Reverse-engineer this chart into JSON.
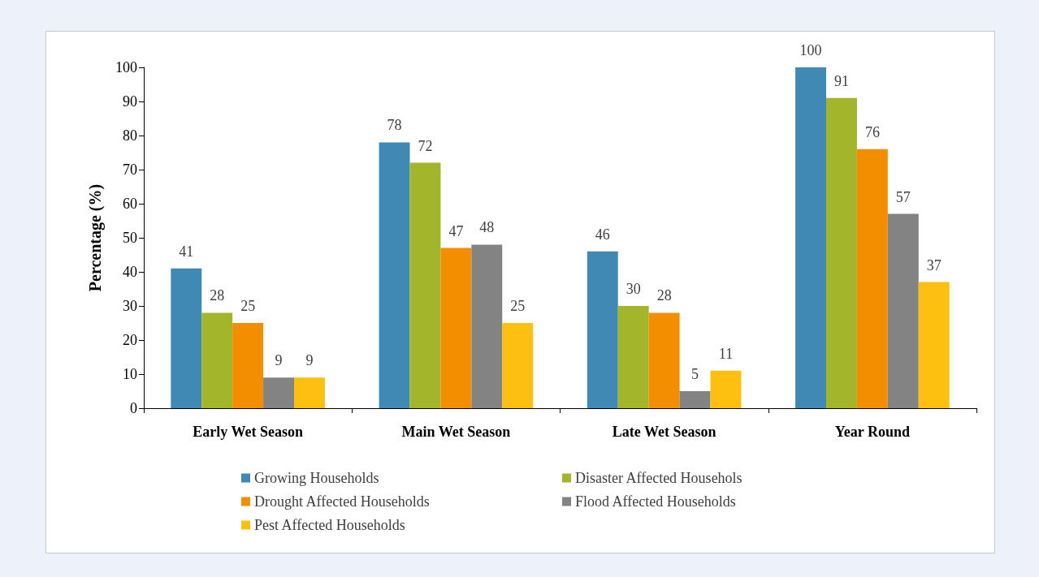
{
  "chart_data": {
    "type": "bar",
    "ylabel": "Percentage (%)",
    "categories": [
      "Early Wet Season",
      "Main Wet Season",
      "Late Wet Season",
      "Year Round"
    ],
    "series": [
      {
        "name": "Growing Households",
        "color": "#3f89b4",
        "values": [
          41,
          78,
          46,
          100
        ]
      },
      {
        "name": "Disaster Affected Househols",
        "color": "#a3b52b",
        "values": [
          28,
          72,
          30,
          91
        ]
      },
      {
        "name": "Drought Affected Households",
        "color": "#f28e00",
        "values": [
          25,
          47,
          28,
          76
        ]
      },
      {
        "name": "Flood Affected Households",
        "color": "#838383",
        "values": [
          9,
          48,
          5,
          57
        ]
      },
      {
        "name": "Pest Affected Households",
        "color": "#fdc010",
        "values": [
          9,
          25,
          11,
          37
        ]
      }
    ],
    "ylim": [
      0,
      100
    ],
    "yticks": [
      0,
      10,
      20,
      30,
      40,
      50,
      60,
      70,
      80,
      90,
      100
    ],
    "grid": false,
    "legend": "bottom",
    "data_labels": true
  }
}
